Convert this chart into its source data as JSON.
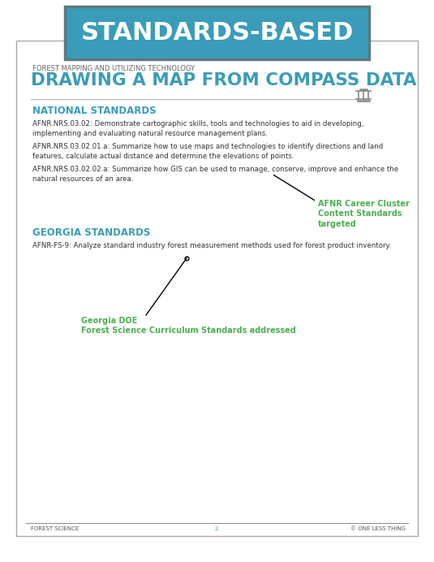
{
  "bg_color": "#ffffff",
  "header_bg": "#3a9cb8",
  "header_border": "#5a7a80",
  "header_text": "STANDARDS-BASED",
  "header_text_color": "#ffffff",
  "card_border": "#aaaaaa",
  "subtitle_label": "FOREST MAPPING AND UTILIZING TECHNOLOGY",
  "title": "DRAWING A MAP FROM COMPASS DATA",
  "title_color": "#3a9cb8",
  "subtitle_color": "#666666",
  "section1_title": "NATIONAL STANDARDS",
  "section1_color": "#3a9cb8",
  "section2_title": "GEORGIA STANDARDS",
  "section2_color": "#3a9cb8",
  "body_color": "#333333",
  "green_color": "#4caf50",
  "nat_std1": "AFNR.NRS.03.02: Demonstrate cartographic skills, tools and technologies to aid in developing,\nimplementing and evaluating natural resource management plans.",
  "nat_std2": "AFNR.NRS.03.02.01.a: Summarize how to use maps and technologies to identify directions and land\nfeatures, calculate actual distance and determine the elevations of points.",
  "nat_std3": "AFNR.NRS.03.02.02.a: Summarize how GIS can be used to manage, conserve, improve and enhance the\nnatural resources of an area.",
  "ga_std1": "AFNR-FS-9: Analyze standard industry forest measurement methods used for forest product inventory.",
  "afnr_label": "AFNR Career Cluster\nContent Standards\ntargeted",
  "georgia_label": "Georgia DOE\nForest Science Curriculum Standards addressed",
  "footer_left": "FOREST SCIENCE",
  "footer_center": "2",
  "footer_right": "© ONE LESS THING",
  "footer_color": "#555555",
  "footer_center_color": "#3a9cb8",
  "line_color": "#bbbbbb"
}
